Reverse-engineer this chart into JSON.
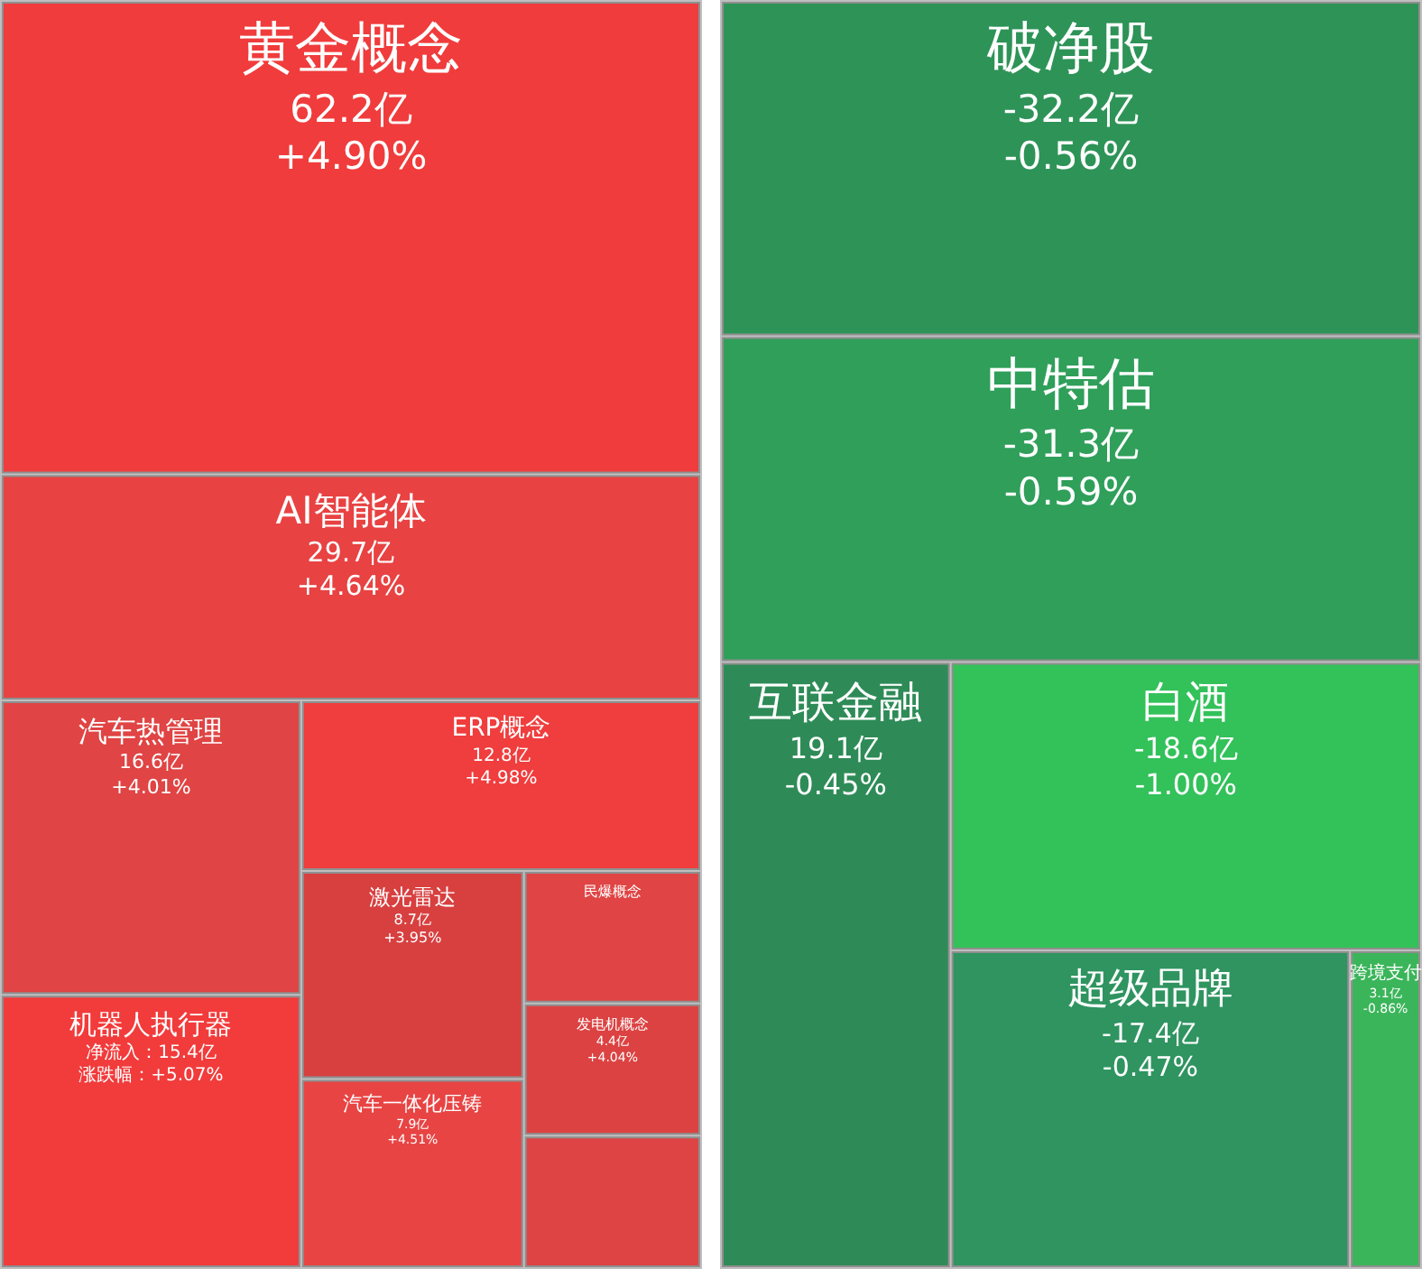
{
  "chart_data": [
    {
      "type": "other",
      "categories": [
        "黄金概念",
        "AI智能体",
        null,
        "汽车热管理",
        "机器人执行器",
        "ERP概念",
        "激光雷达",
        "汽车一体化压铸",
        "发电机概念",
        "民爆概念"
      ],
      "series": [
        {
          "colors": [
            "#f03c3c",
            "#e84242",
            "#de4444",
            "#e04444",
            "#f23b3b",
            "#f03d3d",
            "#d84040",
            "#e84444",
            "#dc4242",
            "#e04444"
          ],
          "values": [
            62.2,
            29.7,
            null,
            16.6,
            15.4,
            12.8,
            8.7,
            7.9,
            4.4,
            null
          ],
          "value_labels": [
            "62.2亿",
            "29.7亿",
            null,
            "16.6亿",
            "净流入：15.4亿",
            "12.8亿",
            "8.7亿",
            "7.9亿",
            "4.4亿",
            null
          ]
        },
        {
          "values": [
            4.9,
            4.64,
            null,
            4.01,
            5.07,
            4.98,
            3.95,
            4.51,
            4.04,
            null
          ],
          "value_labels": [
            "+4.90%",
            "+4.64%",
            null,
            "+4.01%",
            "涨跌幅：+5.07%",
            "+4.98%",
            "+3.95%",
            "+4.51%",
            "+4.04%",
            null
          ]
        }
      ]
    },
    {
      "type": "other",
      "categories": [
        "破净股",
        "中特估",
        "互联金融",
        "白酒",
        "超级品牌",
        "跨境支付"
      ],
      "series": [
        {
          "colors": [
            "#2e9357",
            "#2f9f5a",
            "#2e8b57",
            "#33c15a",
            "#2f9460",
            "#3bb55a"
          ],
          "values": [
            -32.2,
            -31.3,
            19.1,
            -18.6,
            -17.4,
            3.1
          ],
          "value_labels": [
            "-32.2亿",
            "-31.3亿",
            "19.1亿",
            "-18.6亿",
            "-17.4亿",
            "3.1亿"
          ]
        },
        {
          "values": [
            -0.56,
            -0.59,
            -0.45,
            -1.0,
            -0.47,
            -0.86
          ],
          "value_labels": [
            "-0.56%",
            "-0.59%",
            "-0.45%",
            "-1.00%",
            "-0.47%",
            "-0.86%"
          ]
        }
      ]
    }
  ]
}
